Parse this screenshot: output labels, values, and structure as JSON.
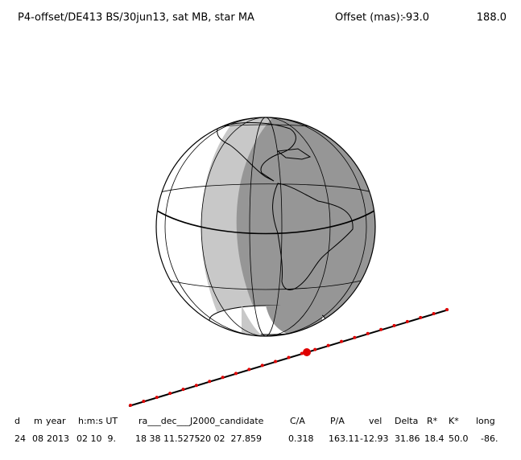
{
  "header": {
    "title": "P4-offset/DE413 BS/30jun13, sat MB, star MA",
    "offset_label": "Offset (mas):",
    "offset_x": "-93.0",
    "offset_y": "188.0"
  },
  "table": {
    "columns": [
      "d",
      "m",
      "year",
      "h:m:s UT",
      "ra___dec___J2000_candidate",
      "C/A",
      "P/A",
      "vel",
      "Delta",
      "R*",
      "K*",
      "long"
    ],
    "rows": [
      [
        "24",
        "08",
        "2013",
        "02 10  9.",
        "18 38 11.5275",
        "-20 02  27.859",
        "0.318",
        "163.11",
        "-12.93",
        "31.86",
        "18.4",
        "50.0",
        "-86."
      ]
    ]
  }
}
